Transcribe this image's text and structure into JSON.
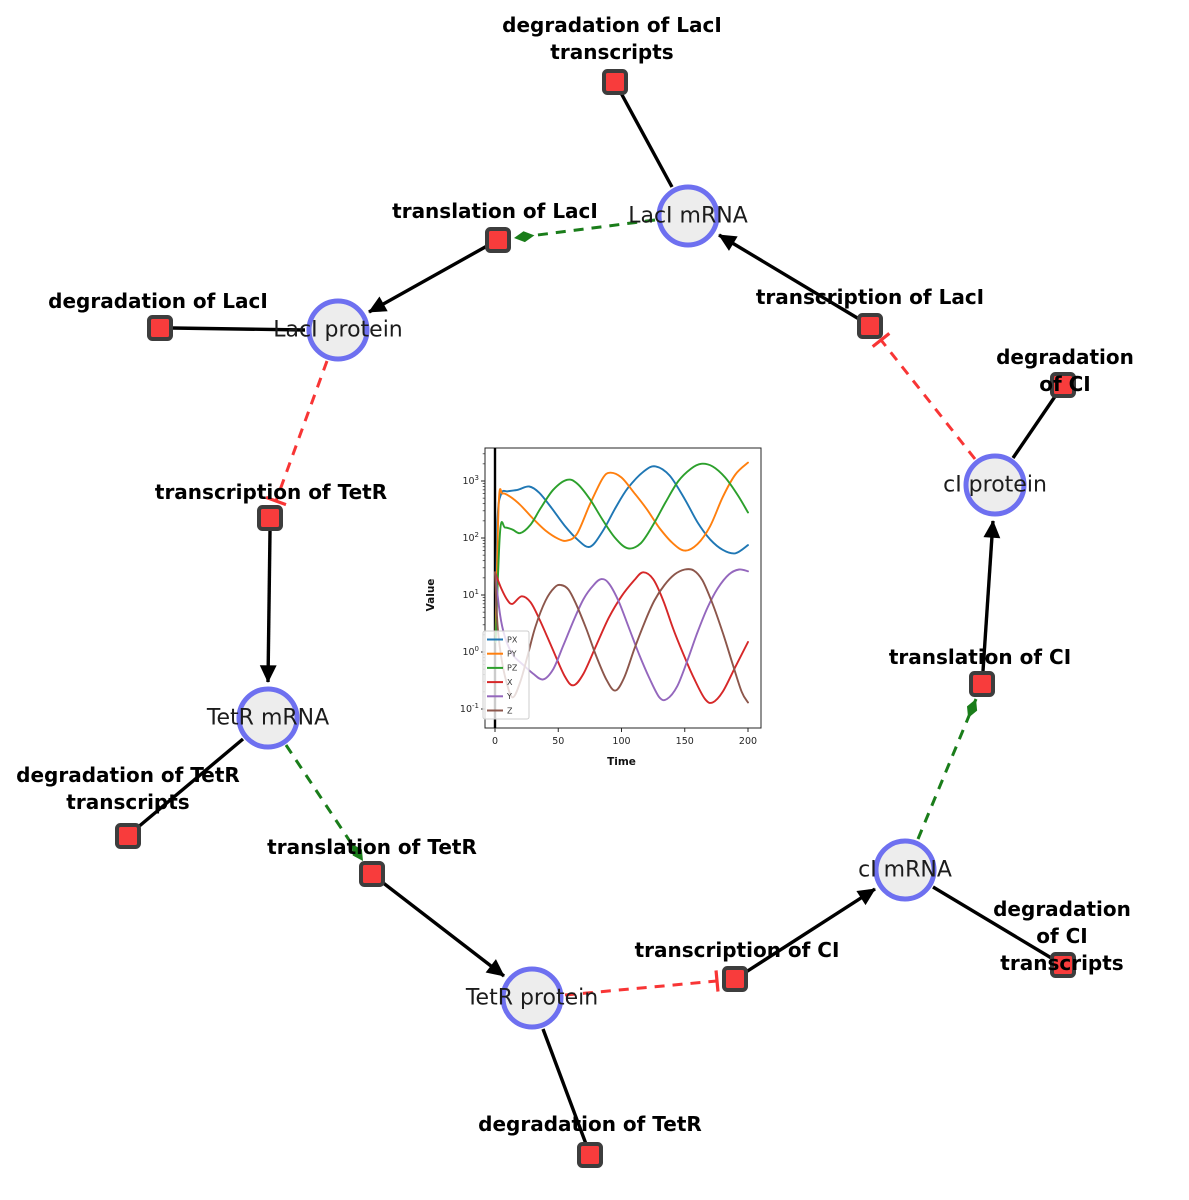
{
  "diagram": {
    "title_hidden": "",
    "colors": {
      "species_fill": "#ededed",
      "species_border": "#6e70f0",
      "reaction_fill": "#f83c3c",
      "reaction_border": "#3d3d3d",
      "production_edge": "#000000",
      "modifier_edge": "#1a7d1a",
      "inhibition_edge": "#f83535",
      "background": "#ffffff"
    },
    "species": [
      {
        "id": "laci-mrna",
        "label": "LacI mRNA"
      },
      {
        "id": "laci-protein",
        "label": "LacI protein"
      },
      {
        "id": "tetr-mrna",
        "label": "TetR mRNA"
      },
      {
        "id": "tetr-protein",
        "label": "TetR protein"
      },
      {
        "id": "ci-mrna",
        "label": "cI mRNA"
      },
      {
        "id": "ci-protein",
        "label": "cI protein"
      }
    ],
    "reactions": [
      {
        "id": "deg-laci-transcripts",
        "label": "degradation of LacI\ntranscripts"
      },
      {
        "id": "translation-laci",
        "label": "translation of LacI"
      },
      {
        "id": "transcription-laci",
        "label": "transcription of LacI"
      },
      {
        "id": "deg-laci",
        "label": "degradation of LacI"
      },
      {
        "id": "transcription-tetr",
        "label": "transcription of TetR"
      },
      {
        "id": "deg-tetr-transcripts",
        "label": "degradation of TetR\ntranscripts"
      },
      {
        "id": "translation-tetr",
        "label": "translation of TetR"
      },
      {
        "id": "deg-tetr",
        "label": "degradation of TetR"
      },
      {
        "id": "transcription-ci",
        "label": "transcription of CI"
      },
      {
        "id": "deg-ci-transcripts",
        "label": "degradation of CI\ntranscripts"
      },
      {
        "id": "translation-ci",
        "label": "translation of CI"
      },
      {
        "id": "deg-ci",
        "label": "degradation of CI"
      }
    ],
    "edges": [
      {
        "from": "laci-mrna",
        "to": "deg-laci-transcripts",
        "type": "consumption"
      },
      {
        "from": "laci-mrna",
        "to": "translation-laci",
        "type": "modifier"
      },
      {
        "from": "translation-laci",
        "to": "laci-protein",
        "type": "production"
      },
      {
        "from": "transcription-laci",
        "to": "laci-mrna",
        "type": "production"
      },
      {
        "from": "laci-protein",
        "to": "deg-laci",
        "type": "consumption"
      },
      {
        "from": "laci-protein",
        "to": "transcription-tetr",
        "type": "inhibition"
      },
      {
        "from": "transcription-tetr",
        "to": "tetr-mrna",
        "type": "production"
      },
      {
        "from": "tetr-mrna",
        "to": "deg-tetr-transcripts",
        "type": "consumption"
      },
      {
        "from": "tetr-mrna",
        "to": "translation-tetr",
        "type": "modifier"
      },
      {
        "from": "translation-tetr",
        "to": "tetr-protein",
        "type": "production"
      },
      {
        "from": "tetr-protein",
        "to": "deg-tetr",
        "type": "consumption"
      },
      {
        "from": "tetr-protein",
        "to": "transcription-ci",
        "type": "inhibition"
      },
      {
        "from": "transcription-ci",
        "to": "ci-mrna",
        "type": "production"
      },
      {
        "from": "ci-mrna",
        "to": "deg-ci-transcripts",
        "type": "consumption"
      },
      {
        "from": "ci-mrna",
        "to": "translation-ci",
        "type": "modifier"
      },
      {
        "from": "translation-ci",
        "to": "ci-protein",
        "type": "production"
      },
      {
        "from": "ci-protein",
        "to": "deg-ci",
        "type": "consumption"
      },
      {
        "from": "ci-protein",
        "to": "transcription-laci",
        "type": "inhibition"
      }
    ]
  },
  "chart_data": {
    "type": "line",
    "title": "",
    "xlabel": "Time",
    "ylabel": "Value",
    "x_ticks": [
      0,
      50,
      100,
      150,
      200
    ],
    "xlim": [
      0,
      200
    ],
    "y_scale": "log",
    "y_tick_exponents": [
      -1,
      0,
      1,
      2,
      3
    ],
    "ylim_log10": [
      -1,
      3.58
    ],
    "grid": false,
    "legend_position": "lower left",
    "annotations": [
      "vertical black line at t=0 spanning full plot height"
    ],
    "series": [
      {
        "name": "PX",
        "color": "#1f77b4",
        "points": [
          [
            0.5,
            2
          ],
          [
            2,
            200
          ],
          [
            5,
            600
          ],
          [
            10,
            660
          ],
          [
            18,
            700
          ],
          [
            27,
            800
          ],
          [
            35,
            620
          ],
          [
            45,
            330
          ],
          [
            55,
            165
          ],
          [
            65,
            95
          ],
          [
            75,
            70
          ],
          [
            85,
            130
          ],
          [
            95,
            330
          ],
          [
            105,
            750
          ],
          [
            118,
            1500
          ],
          [
            127,
            1800
          ],
          [
            138,
            1250
          ],
          [
            150,
            480
          ],
          [
            160,
            190
          ],
          [
            170,
            95
          ],
          [
            180,
            62
          ],
          [
            190,
            54
          ],
          [
            200,
            75
          ]
        ]
      },
      {
        "name": "PY",
        "color": "#ff7f0e",
        "points": [
          [
            0.5,
            2
          ],
          [
            3,
            430
          ],
          [
            6,
            600
          ],
          [
            12,
            530
          ],
          [
            20,
            380
          ],
          [
            30,
            220
          ],
          [
            40,
            135
          ],
          [
            50,
            97
          ],
          [
            57,
            90
          ],
          [
            65,
            120
          ],
          [
            75,
            390
          ],
          [
            85,
            1100
          ],
          [
            91,
            1400
          ],
          [
            100,
            1150
          ],
          [
            110,
            620
          ],
          [
            120,
            320
          ],
          [
            130,
            150
          ],
          [
            140,
            83
          ],
          [
            150,
            60
          ],
          [
            160,
            78
          ],
          [
            170,
            160
          ],
          [
            180,
            520
          ],
          [
            190,
            1300
          ],
          [
            200,
            2100
          ]
        ]
      },
      {
        "name": "PZ",
        "color": "#2ca02c",
        "points": [
          [
            0.5,
            1.5
          ],
          [
            4,
            130
          ],
          [
            8,
            152
          ],
          [
            14,
            140
          ],
          [
            20,
            122
          ],
          [
            28,
            170
          ],
          [
            36,
            330
          ],
          [
            46,
            700
          ],
          [
            57,
            1050
          ],
          [
            65,
            900
          ],
          [
            75,
            480
          ],
          [
            85,
            210
          ],
          [
            95,
            100
          ],
          [
            105,
            66
          ],
          [
            115,
            80
          ],
          [
            125,
            170
          ],
          [
            135,
            430
          ],
          [
            145,
            1000
          ],
          [
            155,
            1650
          ],
          [
            163,
            2000
          ],
          [
            172,
            1800
          ],
          [
            182,
            1150
          ],
          [
            192,
            560
          ],
          [
            200,
            280
          ]
        ]
      },
      {
        "name": "X",
        "color": "#d62728",
        "points": [
          [
            0,
            25
          ],
          [
            5,
            13
          ],
          [
            10,
            8
          ],
          [
            14,
            7
          ],
          [
            21,
            9.5
          ],
          [
            28,
            7.5
          ],
          [
            35,
            3.8
          ],
          [
            45,
            1.2
          ],
          [
            55,
            0.38
          ],
          [
            62,
            0.26
          ],
          [
            70,
            0.42
          ],
          [
            80,
            1.3
          ],
          [
            90,
            4
          ],
          [
            100,
            9.5
          ],
          [
            110,
            18
          ],
          [
            117,
            25
          ],
          [
            125,
            19
          ],
          [
            133,
            8
          ],
          [
            141,
            2.5
          ],
          [
            150,
            0.8
          ],
          [
            158,
            0.32
          ],
          [
            166,
            0.15
          ],
          [
            172,
            0.13
          ],
          [
            180,
            0.2
          ],
          [
            190,
            0.55
          ],
          [
            200,
            1.5
          ]
        ]
      },
      {
        "name": "Y",
        "color": "#9467bd",
        "points": [
          [
            0,
            25
          ],
          [
            4,
            4.5
          ],
          [
            8,
            1.8
          ],
          [
            14,
            0.9
          ],
          [
            22,
            0.6
          ],
          [
            30,
            0.42
          ],
          [
            38,
            0.33
          ],
          [
            46,
            0.5
          ],
          [
            54,
            1.3
          ],
          [
            62,
            3.5
          ],
          [
            70,
            8.5
          ],
          [
            78,
            15
          ],
          [
            84,
            19
          ],
          [
            90,
            16
          ],
          [
            98,
            7.5
          ],
          [
            106,
            2.6
          ],
          [
            114,
            0.9
          ],
          [
            122,
            0.35
          ],
          [
            130,
            0.16
          ],
          [
            136,
            0.15
          ],
          [
            144,
            0.25
          ],
          [
            152,
            0.7
          ],
          [
            160,
            2.2
          ],
          [
            168,
            6
          ],
          [
            176,
            13
          ],
          [
            185,
            23
          ],
          [
            193,
            28
          ],
          [
            200,
            26
          ]
        ]
      },
      {
        "name": "Z",
        "color": "#8c564b",
        "points": [
          [
            0,
            25
          ],
          [
            2,
            3
          ],
          [
            5,
            0.8
          ],
          [
            9,
            0.3
          ],
          [
            14,
            0.16
          ],
          [
            20,
            0.3
          ],
          [
            26,
            0.9
          ],
          [
            32,
            2.8
          ],
          [
            40,
            8
          ],
          [
            47,
            13.5
          ],
          [
            52,
            15
          ],
          [
            58,
            12.5
          ],
          [
            64,
            7
          ],
          [
            72,
            2.6
          ],
          [
            80,
            0.85
          ],
          [
            88,
            0.33
          ],
          [
            95,
            0.21
          ],
          [
            102,
            0.35
          ],
          [
            110,
            1.1
          ],
          [
            118,
            3.2
          ],
          [
            126,
            8
          ],
          [
            134,
            15
          ],
          [
            142,
            23
          ],
          [
            150,
            28
          ],
          [
            157,
            27
          ],
          [
            164,
            18
          ],
          [
            172,
            7
          ],
          [
            180,
            2.2
          ],
          [
            188,
            0.6
          ],
          [
            195,
            0.2
          ],
          [
            200,
            0.13
          ]
        ]
      }
    ]
  }
}
